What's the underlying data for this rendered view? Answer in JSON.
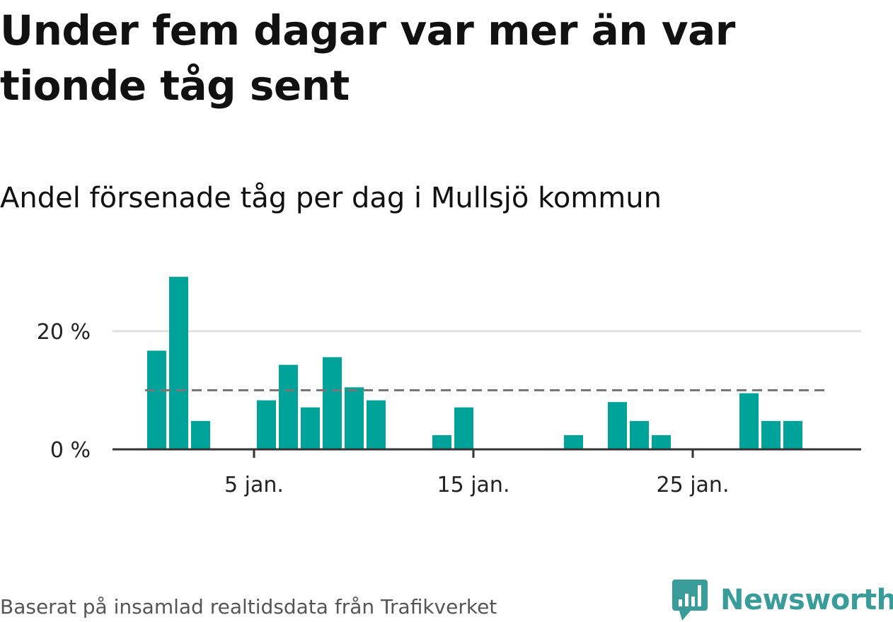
{
  "title": "Under fem dagar var mer än var tionde tåg sent",
  "subtitle": "Andel försenade tåg per dag i Mullsjö kommun",
  "source": "Baserat på insamlad realtidsdata från Trafikverket",
  "logo": {
    "text": "Newsworthy",
    "icon": "newsworthy-chart-bubble-icon",
    "color": "#3a9c99"
  },
  "colors": {
    "bar": "#00a39a",
    "gridline": "#e0e0e0",
    "axis": "#333333",
    "reference_line": "#777777"
  },
  "chart_data": {
    "type": "bar",
    "title": "Under fem dagar var mer än var tionde tåg sent",
    "subtitle": "Andel försenade tåg per dag i Mullsjö kommun",
    "xlabel": "",
    "ylabel": "",
    "x": [
      1,
      2,
      3,
      4,
      5,
      6,
      7,
      8,
      9,
      10,
      11,
      12,
      13,
      14,
      15,
      16,
      17,
      18,
      19,
      20,
      21,
      22,
      23,
      24,
      25,
      26,
      27,
      28,
      29,
      30,
      31
    ],
    "values": [
      16.7,
      29.2,
      4.8,
      0,
      0,
      8.3,
      14.3,
      7.1,
      15.6,
      10.5,
      8.3,
      0,
      0,
      2.4,
      7.1,
      0,
      0,
      0,
      0,
      2.4,
      0,
      8.0,
      4.8,
      2.4,
      0,
      0,
      0,
      9.5,
      4.8,
      4.8,
      0
    ],
    "unit": "%",
    "ylim": [
      0,
      30
    ],
    "y_ticks": [
      {
        "value": 0,
        "label": "0 %"
      },
      {
        "value": 20,
        "label": "20 %"
      }
    ],
    "x_ticks": [
      {
        "value": 5,
        "label": "5 jan."
      },
      {
        "value": 15,
        "label": "15 jan."
      },
      {
        "value": 25,
        "label": "25 jan."
      }
    ],
    "reference_line": {
      "value": 10,
      "style": "dashed",
      "x_range": [
        1,
        31
      ]
    },
    "grid": true,
    "legend": "none"
  }
}
